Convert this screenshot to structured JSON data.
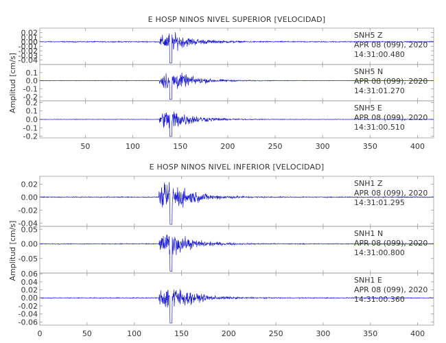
{
  "chart_data": [
    {
      "type": "line",
      "title": "E HOSP NINOS NIVEL SUPERIOR [VELOCIDAD]",
      "ylabel": "Amplitud [cm/s]",
      "xlabel": "",
      "xlim": [
        2,
        417
      ],
      "x_ticks": [
        "50",
        "100",
        "150",
        "200",
        "250",
        "300",
        "350",
        "400"
      ],
      "line_color": "#1a1ad6",
      "onset_x": 128,
      "peak_x": 140,
      "traces": [
        {
          "station": "SNH5",
          "component": "Z",
          "date": "APR 08 (099), 2020",
          "time": "14:31:00.480",
          "ylim": [
            -0.05,
            0.03
          ],
          "y_ticks": [
            "0.02",
            "0.01",
            "0.00",
            "-0.01",
            "-0.02",
            "-0.03",
            "-0.04"
          ],
          "noise": 0.0015,
          "peak": 0.03
        },
        {
          "station": "SNH5",
          "component": "N",
          "date": "APR 08 (099), 2020",
          "time": "14:31:01.270",
          "ylim": [
            -0.25,
            0.2
          ],
          "y_ticks": [
            "0.1",
            "0.0",
            "-0.1",
            "-0.2"
          ],
          "noise": 0.004,
          "peak": 0.2
        },
        {
          "station": "SNH5",
          "component": "E",
          "date": "APR 08 (099), 2020",
          "time": "14:31:00.510",
          "ylim": [
            -0.22,
            0.22
          ],
          "y_ticks": [
            "0.2",
            "0.1",
            "0.0",
            "-0.1",
            "-0.2"
          ],
          "noise": 0.004,
          "peak": 0.2
        }
      ]
    },
    {
      "type": "line",
      "title": "E HOSP NINOS NIVEL INFERIOR [VELOCIDAD]",
      "ylabel": "Amplitud [cm/s]",
      "xlabel": "",
      "xlim": [
        0,
        417
      ],
      "x_ticks": [
        "0",
        "50",
        "100",
        "150",
        "200",
        "250",
        "300",
        "350",
        "400"
      ],
      "line_color": "#1a1ad6",
      "onset_x": 126,
      "peak_x": 139,
      "traces": [
        {
          "station": "SNH1",
          "component": "Z",
          "date": "APR 08 (099), 2020",
          "time": "14:31:01.295",
          "ylim": [
            -0.045,
            0.032
          ],
          "y_ticks": [
            "0.02",
            "0.00",
            "-0.02",
            "-0.04"
          ],
          "noise": 0.001,
          "peak": 0.035
        },
        {
          "station": "SNH1",
          "component": "N",
          "date": "APR 08 (099), 2020",
          "time": "14:31:00.800",
          "ylim": [
            -0.1,
            0.06
          ],
          "y_ticks": [
            "0.05",
            "0.00",
            "-0.05"
          ],
          "noise": 0.002,
          "peak": 0.06
        },
        {
          "station": "SNH1",
          "component": "E",
          "date": "APR 08 (099), 2020",
          "time": "14:31:00.360",
          "ylim": [
            -0.068,
            0.062
          ],
          "y_ticks": [
            "0.06",
            "0.04",
            "0.02",
            "0.00",
            "-0.02",
            "-0.04",
            "-0.06"
          ],
          "noise": 0.0015,
          "peak": 0.05
        }
      ]
    }
  ]
}
